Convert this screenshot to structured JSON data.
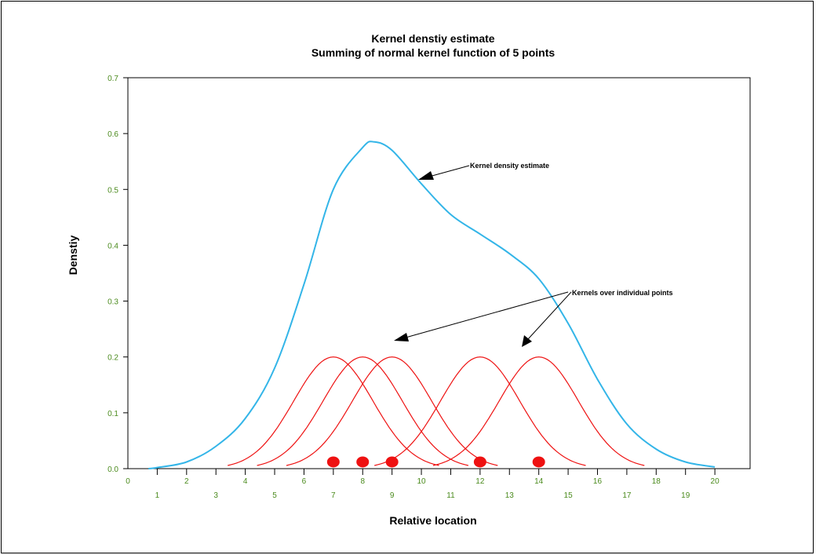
{
  "chart_data": {
    "type": "line",
    "title": "Kernel denstiy estimate",
    "subtitle": "Summing of normal kernel function of 5 points",
    "xlabel": "Relative location",
    "ylabel": "Denstiy",
    "xlim": [
      0,
      21.2
    ],
    "ylim": [
      0,
      0.7
    ],
    "y_ticks": [
      "0.0",
      "0.1",
      "0.2",
      "0.3",
      "0.4",
      "0.5",
      "0.6",
      "0.7"
    ],
    "x_ticks_upper": [
      "0",
      "2",
      "4",
      "6",
      "8",
      "10",
      "12",
      "14",
      "16",
      "18",
      "20"
    ],
    "x_ticks_lower": [
      "1",
      "3",
      "5",
      "7",
      "9",
      "11",
      "13",
      "15",
      "17",
      "19"
    ],
    "x_tick_values": [
      1,
      2,
      3,
      4,
      5,
      6,
      7,
      8,
      9,
      10,
      11,
      12,
      13,
      14,
      15,
      16,
      17,
      18,
      19,
      20
    ],
    "grid": false,
    "points": [
      7,
      8,
      9,
      12,
      14
    ],
    "kernel_sd": 2.0,
    "kernel_peak": 0.2,
    "series": [
      {
        "kind": "kde",
        "x": [
          0.7,
          1,
          2,
          3,
          4,
          5,
          6,
          7,
          8,
          8.4,
          9,
          10,
          11,
          12,
          13,
          14,
          15,
          16,
          17,
          18,
          19,
          20
        ],
        "y": [
          0.0,
          0.002,
          0.012,
          0.04,
          0.09,
          0.18,
          0.33,
          0.5,
          0.575,
          0.585,
          0.57,
          0.51,
          0.455,
          0.42,
          0.385,
          0.34,
          0.26,
          0.16,
          0.08,
          0.035,
          0.012,
          0.003
        ]
      }
    ],
    "colors": {
      "kde": "#33b5e8",
      "kernels": "#ee1111",
      "points": "#ee1111",
      "axis": "#000000",
      "ticks": "#4a8a1c"
    },
    "annotations": [
      {
        "text": "Kernel density estimate"
      },
      {
        "text": "Kernels over individual points"
      }
    ]
  }
}
